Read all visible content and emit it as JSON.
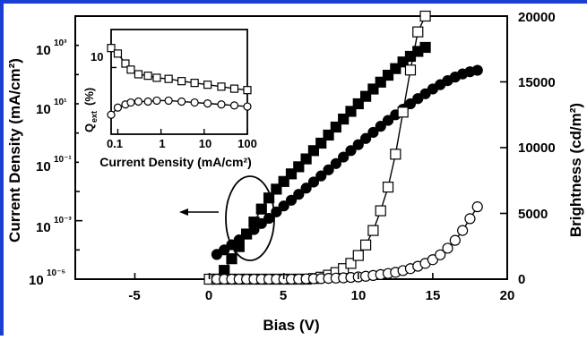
{
  "colors": {
    "frame_accent": "#1a3fd6",
    "ink": "#000000",
    "background": "#ffffff"
  },
  "chart_data": [
    {
      "type": "scatter",
      "xlabel": "Bias  (V)",
      "ylabel_left": "Current Density  (mA/cm²)",
      "ylabel_right": "Brightness  (cd/m²)",
      "x_axis": {
        "range": [
          -9,
          20
        ],
        "ticks": [
          "-5",
          "0",
          "5",
          "10",
          "15",
          "20"
        ]
      },
      "y_left_axis": {
        "scale": "log",
        "range": [
          1e-05,
          10000
        ],
        "ticks": [
          "10⁻⁵",
          "10⁻³",
          "10⁻¹",
          "10¹",
          "10³"
        ]
      },
      "y_right_axis": {
        "scale": "linear",
        "range": [
          0,
          20000
        ],
        "ticks": [
          "0",
          "5000",
          "10000",
          "15000",
          "20000"
        ]
      },
      "series": [
        {
          "marker": "filled-square",
          "axis": "left",
          "x": [
            0.5,
            1.0,
            1.5,
            2.0,
            2.5,
            3.0,
            3.5,
            4.0,
            4.5,
            5.0,
            5.5,
            6.0,
            6.5,
            7.0,
            7.5,
            8.0,
            8.5,
            9.0,
            9.5,
            10.0,
            10.5,
            11.0,
            11.5,
            12.0,
            12.5,
            13.0,
            13.5,
            14.0,
            14.5
          ],
          "y": [
            1e-05,
            2e-05,
            5e-05,
            0.00013,
            0.00035,
            0.0009,
            0.0025,
            0.006,
            0.012,
            0.022,
            0.04,
            0.07,
            0.13,
            0.25,
            0.45,
            0.85,
            1.6,
            3.0,
            5.5,
            10,
            18,
            32,
            55,
            95,
            160,
            270,
            420,
            620,
            850
          ]
        },
        {
          "marker": "filled-circle",
          "axis": "left",
          "x": [
            0.5,
            1.0,
            1.5,
            2.0,
            2.5,
            3.0,
            3.5,
            4.0,
            4.5,
            5.0,
            5.5,
            6.0,
            6.5,
            7.0,
            7.5,
            8.0,
            8.5,
            9.0,
            9.5,
            10.0,
            10.5,
            11.0,
            11.5,
            12.0,
            12.5,
            13.0,
            13.5,
            14.0,
            14.5,
            15.0,
            15.5,
            16.0,
            16.5,
            17.0,
            17.5,
            18.0
          ],
          "y": [
            7e-05,
            0.0001,
            0.00015,
            0.00022,
            0.00035,
            0.0005,
            0.0008,
            0.0012,
            0.002,
            0.0032,
            0.005,
            0.008,
            0.013,
            0.021,
            0.034,
            0.055,
            0.09,
            0.15,
            0.25,
            0.4,
            0.65,
            1.05,
            1.7,
            2.7,
            4.2,
            6.5,
            10,
            15,
            22,
            32,
            45,
            62,
            82,
            105,
            125,
            140
          ]
        },
        {
          "marker": "open-square",
          "axis": "right",
          "x": [
            0.0,
            0.5,
            1.0,
            1.5,
            2.0,
            2.5,
            3.0,
            3.5,
            4.0,
            4.5,
            5.0,
            5.5,
            6.0,
            6.5,
            7.0,
            7.5,
            8.0,
            8.5,
            9.0,
            9.5,
            10.0,
            10.5,
            11.0,
            11.5,
            12.0,
            12.5,
            13.0,
            13.5,
            14.0,
            14.5
          ],
          "y": [
            0,
            0,
            0,
            0,
            0,
            0,
            0,
            0,
            0,
            0,
            0,
            0,
            0,
            0,
            50,
            150,
            300,
            500,
            800,
            1200,
            1800,
            2600,
            3700,
            5200,
            7000,
            9500,
            12700,
            15900,
            18800,
            20000
          ]
        },
        {
          "marker": "open-circle",
          "axis": "right",
          "x": [
            0.5,
            1.0,
            1.5,
            2.0,
            2.5,
            3.0,
            3.5,
            4.0,
            4.5,
            5.0,
            5.5,
            6.0,
            6.5,
            7.0,
            7.5,
            8.0,
            8.5,
            9.0,
            9.5,
            10.0,
            10.5,
            11.0,
            11.5,
            12.0,
            12.5,
            13.0,
            13.5,
            14.0,
            14.5,
            15.0,
            15.5,
            16.0,
            16.5,
            17.0,
            17.5,
            18.0
          ],
          "y": [
            0,
            0,
            0,
            0,
            0,
            0,
            0,
            0,
            0,
            0,
            0,
            10,
            20,
            30,
            40,
            60,
            80,
            100,
            130,
            170,
            220,
            280,
            350,
            430,
            520,
            650,
            800,
            980,
            1200,
            1480,
            1850,
            2350,
            2950,
            3700,
            4600,
            5500
          ]
        }
      ],
      "annotations": {
        "ellipse": {
          "center": {
            "x": 2.5,
            "y": 0.0025
          },
          "spans": "current curves near 2-4 V"
        },
        "arrow_direction": "left"
      }
    },
    {
      "type": "line",
      "inset": true,
      "xlabel": "Current Density  (mA/cm²)",
      "ylabel": "Q_ext  (%)",
      "x_axis": {
        "scale": "log",
        "range": [
          0.07,
          100
        ],
        "ticks": [
          "0.1",
          "1",
          "10",
          "100"
        ]
      },
      "y_axis": {
        "scale": "log",
        "range": [
          2,
          25
        ],
        "ticks": [
          "10"
        ]
      },
      "series": [
        {
          "marker": "open-square",
          "x": [
            0.07,
            0.1,
            0.15,
            0.2,
            0.3,
            0.5,
            0.8,
            1.5,
            3,
            6,
            12,
            25,
            50,
            100
          ],
          "y": [
            16,
            14,
            11,
            9.5,
            8.5,
            8.2,
            7.8,
            7.6,
            7.2,
            6.9,
            6.6,
            6.3,
            6.0,
            5.8
          ]
        },
        {
          "marker": "open-circle",
          "x": [
            0.07,
            0.1,
            0.15,
            0.2,
            0.3,
            0.5,
            0.8,
            1.5,
            3,
            6,
            12,
            25,
            50,
            100
          ],
          "y": [
            3.2,
            3.8,
            4.1,
            4.3,
            4.4,
            4.4,
            4.5,
            4.5,
            4.4,
            4.3,
            4.2,
            4.1,
            4.0,
            3.9
          ]
        }
      ]
    }
  ]
}
